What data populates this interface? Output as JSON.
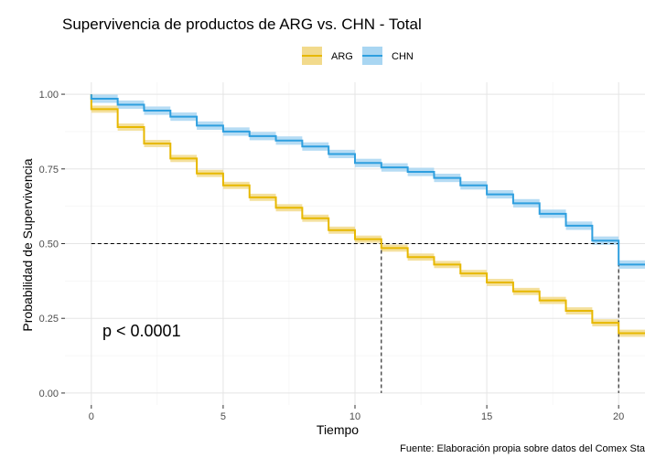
{
  "chart_data": {
    "type": "line",
    "subtype": "step",
    "title": "Supervivencia de productos de ARG vs. CHN - Total",
    "xlabel": "Tiempo",
    "ylabel": "Probabilidad de Supervivencia",
    "xlim": [
      -1,
      21
    ],
    "ylim": [
      -0.04,
      1.04
    ],
    "xticks": [
      0,
      5,
      10,
      15,
      20
    ],
    "xtick_labels": [
      "0",
      "5",
      "10",
      "15",
      "20"
    ],
    "yticks": [
      0,
      0.25,
      0.5,
      0.75,
      1.0
    ],
    "ytick_labels": [
      "0.00",
      "0.25",
      "0.50",
      "0.75",
      "1.00"
    ],
    "grid": true,
    "legend_position": "top",
    "x": [
      0,
      1,
      2,
      3,
      4,
      5,
      6,
      7,
      8,
      9,
      10,
      11,
      12,
      13,
      14,
      15,
      16,
      17,
      18,
      19,
      20
    ],
    "series": [
      {
        "name": "ARG",
        "color": "#E7B800",
        "ci_color": "#F2DA8C",
        "values": [
          0.95,
          0.89,
          0.835,
          0.785,
          0.735,
          0.695,
          0.655,
          0.62,
          0.585,
          0.545,
          0.515,
          0.485,
          0.455,
          0.43,
          0.4,
          0.37,
          0.34,
          0.31,
          0.275,
          0.235,
          0.2
        ],
        "ci": 0.012
      },
      {
        "name": "CHN",
        "color": "#2E9FDF",
        "ci_color": "#A9D6F2",
        "values": [
          0.985,
          0.965,
          0.945,
          0.925,
          0.895,
          0.875,
          0.86,
          0.845,
          0.825,
          0.8,
          0.77,
          0.755,
          0.74,
          0.72,
          0.695,
          0.665,
          0.635,
          0.6,
          0.56,
          0.51,
          0.43
        ],
        "ci": 0.014
      }
    ],
    "median_line": {
      "y": 0.5,
      "x_values": [
        11,
        20
      ]
    },
    "annotation": "p < 0.0001",
    "caption": "Fuente: Elaboración propia sobre datos del Comex Sta"
  }
}
